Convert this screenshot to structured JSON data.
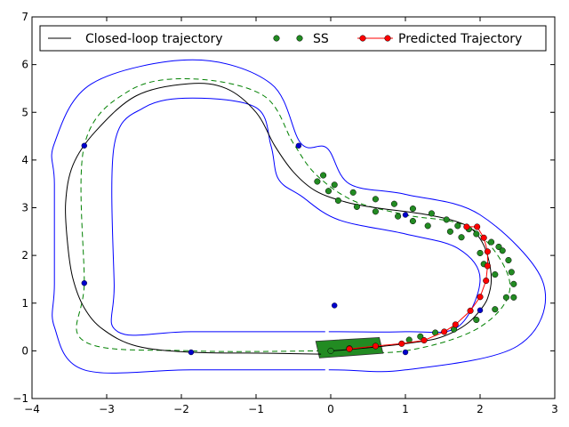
{
  "chart_data": {
    "type": "line",
    "xlim": [
      -4,
      3
    ],
    "ylim": [
      -1,
      7
    ],
    "x_ticks": [
      -4,
      -3,
      -2,
      -1,
      0,
      1,
      2,
      3
    ],
    "y_ticks": [
      -1,
      0,
      1,
      2,
      3,
      4,
      5,
      6,
      7
    ],
    "x_tick_labels": [
      "−4",
      "−3",
      "−2",
      "−1",
      "0",
      "1",
      "2",
      "3"
    ],
    "y_tick_labels": [
      "−1",
      "0",
      "1",
      "2",
      "3",
      "4",
      "5",
      "6",
      "7"
    ],
    "grid": false,
    "legend_position": "top",
    "legend": [
      {
        "label": "Closed-loop trajectory",
        "style": "line",
        "color": "#000000"
      },
      {
        "label": "SS",
        "style": "markers",
        "color": "#228b22"
      },
      {
        "label": "Predicted Trajectory",
        "style": "line-markers",
        "color": "#ff0000"
      }
    ],
    "track": {
      "outer_boundary": [
        [
          0,
          -0.4
        ],
        [
          -1.87,
          -0.4
        ],
        [
          -3.3,
          -0.4
        ],
        [
          -3.7,
          0.5
        ],
        [
          -3.7,
          1.4
        ],
        [
          -3.7,
          3.5
        ],
        [
          -3.7,
          4.35
        ],
        [
          -3.2,
          5.6
        ],
        [
          -1.85,
          6.1
        ],
        [
          -0.8,
          5.6
        ],
        [
          -0.4,
          4.35
        ],
        [
          -0.05,
          4.25
        ],
        [
          0.25,
          3.5
        ],
        [
          1.0,
          3.28
        ],
        [
          2.0,
          2.85
        ],
        [
          2.85,
          1.4
        ],
        [
          2.5,
          0.1
        ],
        [
          1.0,
          -0.4
        ],
        [
          0,
          -0.4
        ]
      ],
      "inner_boundary": [
        [
          0,
          0.4
        ],
        [
          -1.87,
          0.4
        ],
        [
          -2.85,
          0.4
        ],
        [
          -2.9,
          1.4
        ],
        [
          -2.9,
          4.3
        ],
        [
          -2.5,
          5.1
        ],
        [
          -1.85,
          5.3
        ],
        [
          -1.0,
          5.1
        ],
        [
          -0.8,
          4.3
        ],
        [
          -0.7,
          3.6
        ],
        [
          -0.4,
          3.25
        ],
        [
          0.1,
          2.75
        ],
        [
          1.0,
          2.45
        ],
        [
          1.7,
          2.15
        ],
        [
          2.0,
          1.5
        ],
        [
          1.7,
          0.5
        ],
        [
          1.0,
          0.4
        ],
        [
          0,
          0.4
        ]
      ],
      "centerline": [
        [
          0,
          0
        ],
        [
          -1.87,
          0
        ],
        [
          -3.3,
          0.2
        ],
        [
          -3.3,
          1.45
        ],
        [
          -3.3,
          4.3
        ],
        [
          -2.7,
          5.45
        ],
        [
          -1.85,
          5.7
        ],
        [
          -0.9,
          5.35
        ],
        [
          -0.5,
          4.35
        ],
        [
          -0.2,
          3.7
        ],
        [
          0.3,
          3.15
        ],
        [
          1.0,
          2.85
        ],
        [
          1.9,
          2.55
        ],
        [
          2.4,
          1.4
        ],
        [
          2.0,
          0.5
        ],
        [
          1.0,
          0
        ],
        [
          0,
          0
        ]
      ],
      "color_boundary": "#0000ff",
      "color_centerline": "#008000"
    },
    "series": [
      {
        "name": "Closed-loop trajectory",
        "color": "#000000",
        "x": [
          -0.13,
          -0.8,
          -1.86,
          -2.6,
          -3.05,
          -3.3,
          -3.45,
          -3.52,
          -3.55,
          -3.45,
          -3.15,
          -2.6,
          -1.9,
          -1.4,
          -1.0,
          -0.75,
          -0.5,
          -0.2,
          0.2,
          0.6,
          1.0,
          1.3,
          1.6,
          1.85,
          2.0,
          2.1,
          2.15,
          2.1,
          2.0,
          1.85,
          1.65,
          1.4,
          1.0,
          0.6,
          0.2,
          0.0
        ],
        "y": [
          -0.07,
          -0.05,
          -0.03,
          0.1,
          0.45,
          0.9,
          1.5,
          2.2,
          3.1,
          3.9,
          4.6,
          5.35,
          5.6,
          5.5,
          5.0,
          4.3,
          3.75,
          3.35,
          3.12,
          3.0,
          2.92,
          2.85,
          2.75,
          2.6,
          2.35,
          2.0,
          1.5,
          1.1,
          0.85,
          0.6,
          0.4,
          0.25,
          0.15,
          0.08,
          0.02,
          0.0
        ]
      },
      {
        "name": "SS",
        "color": "#228b22",
        "x": [
          -0.18,
          -0.1,
          -0.03,
          0.05,
          0.1,
          0.3,
          0.35,
          0.6,
          0.6,
          0.85,
          0.9,
          1.1,
          1.1,
          1.3,
          1.35,
          1.55,
          1.6,
          1.7,
          1.75,
          1.85,
          1.95,
          2.0,
          2.05,
          2.15,
          2.2,
          2.25,
          2.3,
          2.38,
          2.42,
          2.45,
          2.45,
          2.35,
          2.2,
          1.95,
          1.65,
          1.4,
          1.2,
          1.05,
          0.25,
          0.0
        ],
        "y": [
          3.55,
          3.68,
          3.35,
          3.48,
          3.15,
          3.32,
          3.02,
          3.18,
          2.92,
          3.08,
          2.82,
          2.98,
          2.72,
          2.62,
          2.88,
          2.75,
          2.5,
          2.62,
          2.38,
          2.55,
          2.45,
          2.05,
          1.82,
          2.28,
          1.6,
          2.18,
          2.1,
          1.9,
          1.65,
          1.4,
          1.12,
          1.12,
          0.87,
          0.65,
          0.45,
          0.38,
          0.3,
          0.23,
          0.05,
          0.0
        ]
      },
      {
        "name": "Predicted Trajectory",
        "color": "#ff0000",
        "x": [
          0.25,
          0.6,
          0.95,
          1.25,
          1.52,
          1.67,
          1.87,
          2.0,
          2.08,
          2.1,
          2.1,
          2.05,
          1.96,
          1.82
        ],
        "y": [
          0.04,
          0.1,
          0.15,
          0.22,
          0.4,
          0.55,
          0.84,
          1.13,
          1.47,
          1.78,
          2.08,
          2.37,
          2.6,
          2.6
        ]
      }
    ],
    "reference_points": {
      "color": "#0000cc",
      "x": [
        -0.43,
        -3.3,
        -3.3,
        -1.87,
        1.0,
        1.0,
        2.0,
        0.05
      ],
      "y": [
        4.3,
        4.3,
        1.42,
        -0.03,
        -0.03,
        2.85,
        0.85,
        0.95
      ]
    },
    "vehicle": {
      "color": "#228b22",
      "corners": [
        [
          -0.15,
          -0.15
        ],
        [
          0.7,
          -0.05
        ],
        [
          0.65,
          0.28
        ],
        [
          -0.2,
          0.2
        ]
      ]
    }
  }
}
